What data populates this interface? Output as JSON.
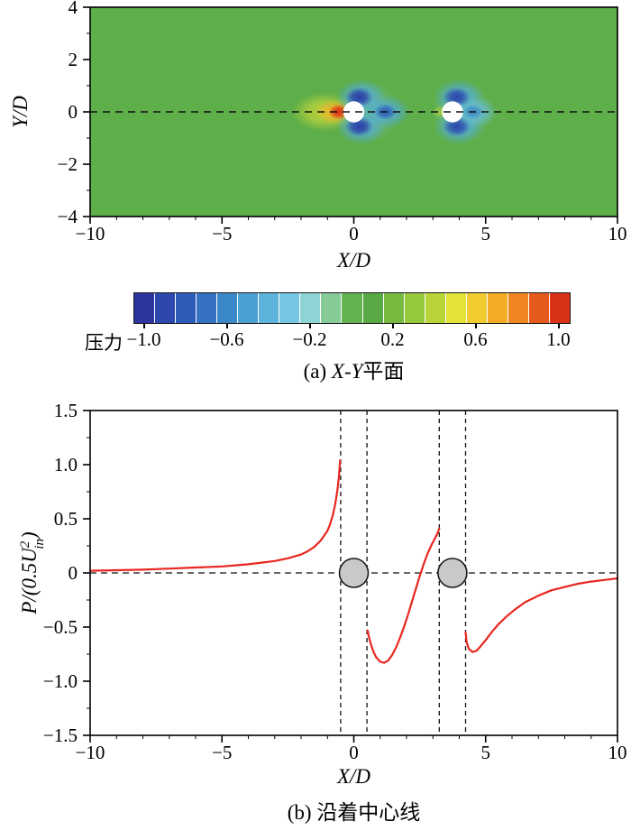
{
  "figure": {
    "panel_a_caption": {
      "prefix": "(a) ",
      "italic": "X-Y",
      "suffix": "平面"
    },
    "panel_b_caption": {
      "prefix": "(b) ",
      "italic": "",
      "suffix": "沿着中心线"
    }
  },
  "chart_data": [
    {
      "type": "heatmap",
      "title": "(a) X-Y平面",
      "xlabel": "X/D",
      "ylabel": "Y/D",
      "xlim": [
        -10,
        10
      ],
      "ylim": [
        -4,
        4
      ],
      "xticks": [
        {
          "v": -10,
          "label": "−10"
        },
        {
          "v": -5,
          "label": "−5"
        },
        {
          "v": 0,
          "label": "0"
        },
        {
          "v": 5,
          "label": "5"
        },
        {
          "v": 10,
          "label": "10"
        }
      ],
      "yticks": [
        {
          "v": 4,
          "label": "4"
        },
        {
          "v": 2,
          "label": "2"
        },
        {
          "v": 0,
          "label": "0"
        },
        {
          "v": -2,
          "label": "−2"
        },
        {
          "v": -4,
          "label": "−4"
        }
      ],
      "minor_x_step": 1,
      "minor_y_step": 1,
      "background_value": 0.05,
      "centerline_y": 0,
      "cylinders": [
        {
          "x": 0,
          "y": 0,
          "r": 0.4
        },
        {
          "x": 3.74,
          "y": 0,
          "r": 0.4
        }
      ],
      "colormap": [
        [
          -1.05,
          "#2c2d96"
        ],
        [
          -0.9,
          "#2c48ad"
        ],
        [
          -0.75,
          "#3065bd"
        ],
        [
          -0.6,
          "#3b88c9"
        ],
        [
          -0.45,
          "#52aad8"
        ],
        [
          -0.3,
          "#74c6e2"
        ],
        [
          -0.18,
          "#93d6d2"
        ],
        [
          -0.08,
          "#83c788"
        ],
        [
          0,
          "#64b350"
        ],
        [
          0.1,
          "#58a943"
        ],
        [
          0.25,
          "#85c23e"
        ],
        [
          0.4,
          "#b8d438"
        ],
        [
          0.5,
          "#e2e238"
        ],
        [
          0.6,
          "#f0cc30"
        ],
        [
          0.72,
          "#f3a626"
        ],
        [
          0.85,
          "#ec711e"
        ],
        [
          0.95,
          "#e04619"
        ],
        [
          1.05,
          "#d51f15"
        ]
      ],
      "features": [
        {
          "name": "cyl1-envelope",
          "cx": 0.55,
          "cy": 0,
          "rx": 1.25,
          "ry": 1.15,
          "value": -0.3,
          "alpha": 0.45
        },
        {
          "name": "cyl2-envelope",
          "cx": 4.15,
          "cy": 0,
          "rx": 1.2,
          "ry": 1.1,
          "value": -0.3,
          "alpha": 0.45
        },
        {
          "name": "cyl1-upstream-halo",
          "cx": -1.1,
          "cy": 0,
          "rx": 1.25,
          "ry": 0.75,
          "value": 0.45,
          "alpha": 0.8
        },
        {
          "name": "cyl1-upstream-mid",
          "cx": -0.75,
          "cy": 0,
          "rx": 0.7,
          "ry": 0.48,
          "value": 0.68,
          "alpha": 0.9
        },
        {
          "name": "cyl1-stagnation-core",
          "cx": -0.58,
          "cy": 0,
          "rx": 0.38,
          "ry": 0.3,
          "value": 1.0,
          "alpha": 1
        },
        {
          "name": "cyl1-top-lobe-halo",
          "cx": 0.28,
          "cy": 0.58,
          "rx": 0.95,
          "ry": 0.68,
          "value": -0.45,
          "alpha": 0.85
        },
        {
          "name": "cyl1-bottom-lobe-halo",
          "cx": 0.28,
          "cy": -0.58,
          "rx": 0.95,
          "ry": 0.68,
          "value": -0.45,
          "alpha": 0.85
        },
        {
          "name": "cyl1-wake-halo",
          "cx": 1.25,
          "cy": 0,
          "rx": 0.9,
          "ry": 0.62,
          "value": -0.45,
          "alpha": 0.85
        },
        {
          "name": "cyl1-top-lobe-core",
          "cx": 0.2,
          "cy": 0.56,
          "rx": 0.52,
          "ry": 0.38,
          "value": -0.95,
          "alpha": 1
        },
        {
          "name": "cyl1-bottom-lobe-core",
          "cx": 0.2,
          "cy": -0.56,
          "rx": 0.52,
          "ry": 0.38,
          "value": -0.95,
          "alpha": 1
        },
        {
          "name": "cyl1-wake-core",
          "cx": 1.2,
          "cy": 0,
          "rx": 0.42,
          "ry": 0.3,
          "value": -0.8,
          "alpha": 0.95
        },
        {
          "name": "cyl2-stagnation",
          "cx": 3.3,
          "cy": 0,
          "rx": 0.32,
          "ry": 0.26,
          "value": 0.4,
          "alpha": 0.7
        },
        {
          "name": "cyl2-top-lobe-halo",
          "cx": 3.98,
          "cy": 0.58,
          "rx": 0.95,
          "ry": 0.68,
          "value": -0.45,
          "alpha": 0.85
        },
        {
          "name": "cyl2-bottom-lobe-halo",
          "cx": 3.98,
          "cy": -0.58,
          "rx": 0.95,
          "ry": 0.68,
          "value": -0.45,
          "alpha": 0.85
        },
        {
          "name": "cyl2-wake-halo",
          "cx": 4.6,
          "cy": 0,
          "rx": 0.85,
          "ry": 0.58,
          "value": -0.35,
          "alpha": 0.8
        },
        {
          "name": "cyl2-top-lobe-core",
          "cx": 3.9,
          "cy": 0.56,
          "rx": 0.52,
          "ry": 0.38,
          "value": -0.9,
          "alpha": 1
        },
        {
          "name": "cyl2-bottom-lobe-core",
          "cx": 3.9,
          "cy": -0.56,
          "rx": 0.52,
          "ry": 0.38,
          "value": -0.9,
          "alpha": 1
        },
        {
          "name": "cyl2-wake-core",
          "cx": 4.52,
          "cy": 0,
          "rx": 0.4,
          "ry": 0.28,
          "value": -0.6,
          "alpha": 0.9
        }
      ],
      "colorbar": {
        "label": "压力",
        "min": -1.05,
        "max": 1.05,
        "segments": 21,
        "ticks": [
          {
            "v": -1.0,
            "label": "−1.0"
          },
          {
            "v": -0.6,
            "label": "−0.6"
          },
          {
            "v": -0.2,
            "label": "−0.2"
          },
          {
            "v": 0.2,
            "label": "0.2"
          },
          {
            "v": 0.6,
            "label": "0.6"
          },
          {
            "v": 1.0,
            "label": "1.0"
          }
        ]
      }
    },
    {
      "type": "line",
      "title": "(b) 沿着中心线",
      "xlabel": "X/D",
      "ylabel": {
        "prefix": "P/(0.5U",
        "sup": "2",
        "sub": "in",
        "suffix": ")"
      },
      "xlim": [
        -10,
        10
      ],
      "ylim": [
        -1.5,
        1.5
      ],
      "xticks": [
        {
          "v": -10,
          "label": "−10"
        },
        {
          "v": -5,
          "label": "−5"
        },
        {
          "v": 0,
          "label": "0"
        },
        {
          "v": 5,
          "label": "5"
        },
        {
          "v": 10,
          "label": "10"
        }
      ],
      "yticks": [
        {
          "v": 1.5,
          "label": "1.5"
        },
        {
          "v": 1.0,
          "label": "1.0"
        },
        {
          "v": 0.5,
          "label": "0.5"
        },
        {
          "v": 0,
          "label": "0"
        },
        {
          "v": -0.5,
          "label": "−0.5"
        },
        {
          "v": -1.0,
          "label": "−1.0"
        },
        {
          "v": -1.5,
          "label": "−1.5"
        }
      ],
      "minor_x_step": 1,
      "minor_y_step": 0.25,
      "hline_y": 0,
      "vlines": [
        -0.5,
        0.5,
        3.24,
        4.24
      ],
      "line_color": "#e8271f",
      "cylinder_fill": "#c9c9c9",
      "cylinders": [
        {
          "x": 0,
          "y": 0
        },
        {
          "x": 3.74,
          "y": 0
        }
      ],
      "series": [
        {
          "name": "centerline-pressure",
          "segments": [
            [
              [
                -10,
                0.02
              ],
              [
                -9,
                0.025
              ],
              [
                -8,
                0.03
              ],
              [
                -7,
                0.04
              ],
              [
                -6,
                0.05
              ],
              [
                -5,
                0.06
              ],
              [
                -4.5,
                0.07
              ],
              [
                -4,
                0.08
              ],
              [
                -3.5,
                0.095
              ],
              [
                -3,
                0.11
              ],
              [
                -2.5,
                0.135
              ],
              [
                -2,
                0.17
              ],
              [
                -1.75,
                0.2
              ],
              [
                -1.5,
                0.24
              ],
              [
                -1.25,
                0.3
              ],
              [
                -1,
                0.39
              ],
              [
                -0.9,
                0.45
              ],
              [
                -0.8,
                0.53
              ],
              [
                -0.7,
                0.64
              ],
              [
                -0.62,
                0.77
              ],
              [
                -0.56,
                0.9
              ],
              [
                -0.52,
                1.04
              ]
            ],
            [
              [
                0.52,
                -0.53
              ],
              [
                0.58,
                -0.6
              ],
              [
                0.65,
                -0.66
              ],
              [
                0.75,
                -0.73
              ],
              [
                0.85,
                -0.78
              ],
              [
                1,
                -0.82
              ],
              [
                1.15,
                -0.83
              ],
              [
                1.3,
                -0.81
              ],
              [
                1.45,
                -0.76
              ],
              [
                1.6,
                -0.69
              ],
              [
                1.75,
                -0.6
              ],
              [
                1.9,
                -0.5
              ],
              [
                2.05,
                -0.39
              ],
              [
                2.2,
                -0.27
              ],
              [
                2.35,
                -0.15
              ],
              [
                2.5,
                -0.03
              ],
              [
                2.65,
                0.08
              ],
              [
                2.8,
                0.18
              ],
              [
                2.95,
                0.26
              ],
              [
                3.1,
                0.33
              ],
              [
                3.18,
                0.37
              ],
              [
                3.24,
                0.41
              ]
            ],
            [
              [
                4.24,
                -0.55
              ],
              [
                4.28,
                -0.64
              ],
              [
                4.36,
                -0.7
              ],
              [
                4.5,
                -0.73
              ],
              [
                4.65,
                -0.72
              ],
              [
                4.8,
                -0.68
              ],
              [
                5,
                -0.62
              ],
              [
                5.25,
                -0.54
              ],
              [
                5.5,
                -0.47
              ],
              [
                5.8,
                -0.4
              ],
              [
                6.1,
                -0.34
              ],
              [
                6.5,
                -0.27
              ],
              [
                7,
                -0.21
              ],
              [
                7.5,
                -0.16
              ],
              [
                8,
                -0.13
              ],
              [
                8.5,
                -0.1
              ],
              [
                9,
                -0.08
              ],
              [
                9.5,
                -0.065
              ],
              [
                10,
                -0.05
              ]
            ]
          ]
        }
      ]
    }
  ]
}
